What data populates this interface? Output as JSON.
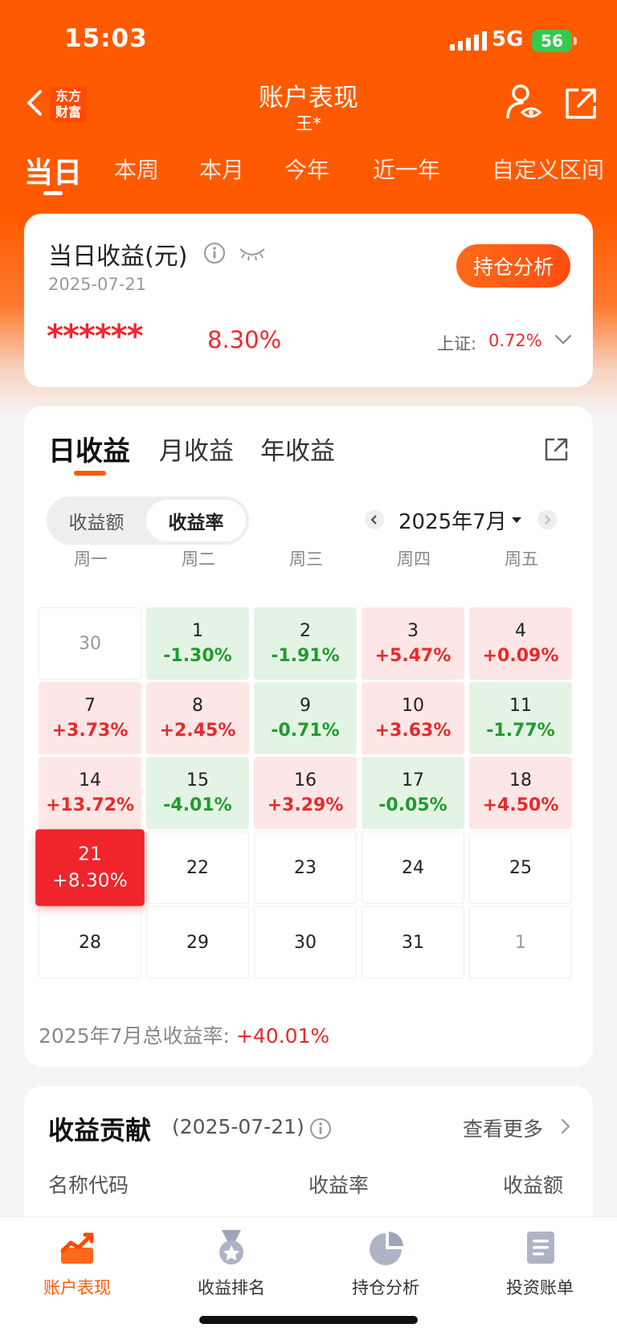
{
  "status": {
    "time": "15:03",
    "network": "5G",
    "battery": "56"
  },
  "header": {
    "logo_text": "东方财富",
    "title": "账户表现",
    "subtitle": "王*"
  },
  "period_tabs": [
    "当日",
    "本周",
    "本月",
    "今年",
    "近一年",
    "自定义区间"
  ],
  "summary": {
    "title": "当日收益(元)",
    "date": "2025-07-21",
    "masked_amount": "******",
    "rate": "8.30%",
    "holding_button": "持仓分析",
    "index_label": "上证:",
    "index_value": "0.72%"
  },
  "income_tabs": [
    "日收益",
    "月收益",
    "年收益"
  ],
  "toggle": {
    "amount": "收益额",
    "rate": "收益率"
  },
  "month": "2025年7月",
  "weekdays": [
    "周一",
    "周二",
    "周三",
    "周四",
    "周五"
  ],
  "calendar": [
    {
      "day": "30",
      "rate": "",
      "state": "muted"
    },
    {
      "day": "1",
      "rate": "-1.30%",
      "state": "down"
    },
    {
      "day": "2",
      "rate": "-1.91%",
      "state": "down"
    },
    {
      "day": "3",
      "rate": "+5.47%",
      "state": "up"
    },
    {
      "day": "4",
      "rate": "+0.09%",
      "state": "up"
    },
    {
      "day": "7",
      "rate": "+3.73%",
      "state": "up"
    },
    {
      "day": "8",
      "rate": "+2.45%",
      "state": "up"
    },
    {
      "day": "9",
      "rate": "-0.71%",
      "state": "down"
    },
    {
      "day": "10",
      "rate": "+3.63%",
      "state": "up"
    },
    {
      "day": "11",
      "rate": "-1.77%",
      "state": "down"
    },
    {
      "day": "14",
      "rate": "+13.72%",
      "state": "up"
    },
    {
      "day": "15",
      "rate": "-4.01%",
      "state": "down"
    },
    {
      "day": "16",
      "rate": "+3.29%",
      "state": "up"
    },
    {
      "day": "17",
      "rate": "-0.05%",
      "state": "down"
    },
    {
      "day": "18",
      "rate": "+4.50%",
      "state": "up"
    },
    {
      "day": "21",
      "rate": "+8.30%",
      "state": "today"
    },
    {
      "day": "22",
      "rate": "",
      "state": "empty"
    },
    {
      "day": "23",
      "rate": "",
      "state": "empty"
    },
    {
      "day": "24",
      "rate": "",
      "state": "empty"
    },
    {
      "day": "25",
      "rate": "",
      "state": "empty"
    },
    {
      "day": "28",
      "rate": "",
      "state": "empty"
    },
    {
      "day": "29",
      "rate": "",
      "state": "empty"
    },
    {
      "day": "30",
      "rate": "",
      "state": "empty"
    },
    {
      "day": "31",
      "rate": "",
      "state": "empty"
    },
    {
      "day": "1",
      "rate": "",
      "state": "muted"
    }
  ],
  "total": {
    "label": "2025年7月总收益率:",
    "value": "+40.01%"
  },
  "contribution": {
    "title": "收益贡献",
    "date": "(2025-07-21)",
    "more": "查看更多",
    "columns": [
      "名称代码",
      "收益率",
      "收益额"
    ]
  },
  "bottom_nav": [
    {
      "label": "账户表现",
      "icon": "performance-icon",
      "active": true
    },
    {
      "label": "收益排名",
      "icon": "ranking-medal-icon",
      "active": false
    },
    {
      "label": "持仓分析",
      "icon": "pie-chart-icon",
      "active": false
    },
    {
      "label": "投资账单",
      "icon": "bill-icon",
      "active": false
    }
  ],
  "colors": {
    "brand": "#ff5a00",
    "up": "#e62b2b",
    "down": "#1e9c2e"
  }
}
